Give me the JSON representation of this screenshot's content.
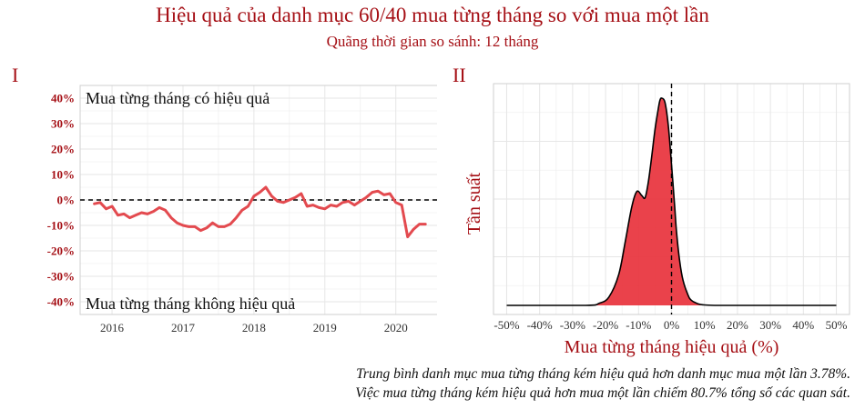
{
  "title": "Hiệu quả của danh mục 60/40 mua từng tháng so với mua một lần",
  "subtitle": "Quãng thời gian so sánh: 12 tháng",
  "panels": {
    "left_label": "I",
    "right_label": "II"
  },
  "notes": [
    "Trung bình danh mục mua từng tháng kém hiệu quả hơn danh mục mua một lần 3.78%.",
    "Việc mua từng tháng kém hiệu quả hơn mua một lần chiếm 80.7% tổng số các quan sát."
  ],
  "colors": {
    "accent": "#a50f15",
    "line": "#e34a4f",
    "fill": "#e8323c",
    "grid": "#e6e6e6"
  },
  "chart_data": [
    {
      "type": "line",
      "annotation_top": "Mua từng tháng có hiệu quả",
      "annotation_bottom": "Mua từng tháng không hiệu quả",
      "xlim": [
        2015.55,
        2020.62
      ],
      "ylim": [
        -45,
        45
      ],
      "x_ticks": [
        2016,
        2017,
        2018,
        2019,
        2020
      ],
      "x_tick_labels": [
        "2016",
        "2017",
        "2018",
        "2019",
        "2020"
      ],
      "y_ticks": [
        -40,
        -30,
        -20,
        -10,
        0,
        10,
        20,
        30,
        40
      ],
      "y_tick_labels": [
        "-40%",
        "-30%",
        "-20%",
        "-10%",
        "0%",
        "10%",
        "20%",
        "30%",
        "40%"
      ],
      "reference_line_y": 0,
      "grid": true,
      "series": [
        {
          "x": [
            2015.75,
            2015.833,
            2015.917,
            2016.0,
            2016.083,
            2016.167,
            2016.25,
            2016.333,
            2016.417,
            2016.5,
            2016.583,
            2016.667,
            2016.75,
            2016.833,
            2016.917,
            2017.0,
            2017.083,
            2017.167,
            2017.25,
            2017.333,
            2017.417,
            2017.5,
            2017.583,
            2017.667,
            2017.75,
            2017.833,
            2017.917,
            2018.0,
            2018.083,
            2018.167,
            2018.25,
            2018.333,
            2018.417,
            2018.5,
            2018.583,
            2018.667,
            2018.75,
            2018.833,
            2018.917,
            2019.0,
            2019.083,
            2019.167,
            2019.25,
            2019.333,
            2019.417,
            2019.5,
            2019.583,
            2019.667,
            2019.75,
            2019.833,
            2019.917,
            2020.0,
            2020.083,
            2020.167,
            2020.25,
            2020.333,
            2020.417
          ],
          "y": [
            -1.5,
            -1.0,
            -3.5,
            -2.5,
            -6,
            -5.5,
            -7,
            -6,
            -5,
            -5.5,
            -4.5,
            -3,
            -4,
            -7,
            -9,
            -10,
            -10.5,
            -10.5,
            -12,
            -11,
            -9,
            -10.5,
            -10.5,
            -9.5,
            -7,
            -4,
            -2.5,
            1.5,
            3,
            5,
            1.5,
            -0.5,
            -1,
            0,
            1,
            2.5,
            -2.5,
            -2,
            -3,
            -3.5,
            -2,
            -2.5,
            -1,
            -0.5,
            -2,
            -0.5,
            1,
            3,
            3.5,
            2,
            2.5,
            -1,
            -2,
            -14.5,
            -11.5,
            -9.5,
            -9.5
          ]
        }
      ]
    },
    {
      "type": "area",
      "xlabel": "Mua từng tháng hiệu quả (%)",
      "ylabel": "Tần suất",
      "xlim": [
        -54,
        54
      ],
      "x_ticks": [
        -50,
        -40,
        -30,
        -20,
        -10,
        0,
        10,
        20,
        30,
        40,
        50
      ],
      "x_tick_labels": [
        "-50%",
        "-40%",
        "-30%",
        "-20%",
        "-10%",
        "0%",
        "10%",
        "20%",
        "30%",
        "40%",
        "50%"
      ],
      "reference_line_x": 0,
      "grid": true,
      "series": [
        {
          "x": [
            -50,
            -26,
            -22,
            -19,
            -16,
            -14,
            -12,
            -10.5,
            -9,
            -8,
            -7,
            -6,
            -5,
            -4,
            -3.5,
            -3,
            -2,
            -1,
            0,
            1,
            1.5,
            2.5,
            3.5,
            5,
            6,
            8,
            10,
            13,
            18,
            50
          ],
          "y": [
            0,
            0,
            0.01,
            0.04,
            0.15,
            0.31,
            0.48,
            0.55,
            0.53,
            0.52,
            0.6,
            0.72,
            0.85,
            0.95,
            0.99,
            1.0,
            0.98,
            0.87,
            0.68,
            0.47,
            0.36,
            0.21,
            0.12,
            0.05,
            0.025,
            0.008,
            0.002,
            0,
            0,
            0
          ]
        }
      ]
    }
  ]
}
